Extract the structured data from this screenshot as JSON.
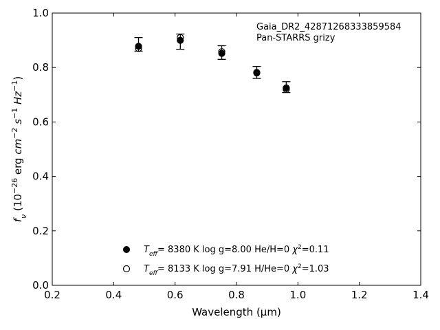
{
  "chart_data": {
    "type": "scatter",
    "title": "",
    "annotation_lines": [
      "Gaia_DR2_42871268333859584",
      "Pan-STARRS grizy"
    ],
    "xlabel": "Wavelength (μm)",
    "ylabel_parts": {
      "base": "f",
      "sub": "ν",
      "pre_unit": " (10",
      "exp1": "−26",
      "unit_mid": " erg ",
      "cm": "cm",
      "exp2": "−2",
      "s": " s",
      "exp3": "−1",
      "hz": " Hz",
      "exp4": "−1",
      "close": ")"
    },
    "xlim": [
      0.2,
      1.4
    ],
    "ylim": [
      0.0,
      1.0
    ],
    "xticks": [
      "0.2",
      "0.4",
      "0.6",
      "0.8",
      "1.0",
      "1.2",
      "1.4"
    ],
    "yticks": [
      "0.0",
      "0.2",
      "0.4",
      "0.6",
      "0.8",
      "1.0"
    ],
    "observed": {
      "x": [
        0.481,
        0.617,
        0.752,
        0.866,
        0.962
      ],
      "y": [
        0.885,
        0.895,
        0.855,
        0.782,
        0.728
      ],
      "yerr": [
        0.025,
        0.028,
        0.025,
        0.022,
        0.02
      ]
    },
    "series": [
      {
        "marker": "filled-circle",
        "x": [
          0.481,
          0.617,
          0.752,
          0.866,
          0.962
        ],
        "y": [
          0.878,
          0.9,
          0.852,
          0.782,
          0.725
        ]
      },
      {
        "marker": "open-circle",
        "x": [
          0.481,
          0.617,
          0.752,
          0.866,
          0.962
        ],
        "y": [
          0.87,
          0.91,
          0.858,
          0.78,
          0.72
        ]
      }
    ],
    "legend": {
      "placement": "lower-center",
      "entries": [
        {
          "teff_label": "T",
          "teff_sub": "eff",
          "text": "=  8380 K  log g=8.00  He/H=0  ",
          "chi": "χ",
          "chi_exp": "2",
          "chi_val": "=0.11"
        },
        {
          "teff_label": "T",
          "teff_sub": "eff",
          "text": "=  8133 K  log g=7.91  H/He=0  ",
          "chi": "χ",
          "chi_exp": "2",
          "chi_val": "=1.03"
        }
      ]
    },
    "colors": {
      "markers": "#000000",
      "background": "#ffffff"
    }
  }
}
